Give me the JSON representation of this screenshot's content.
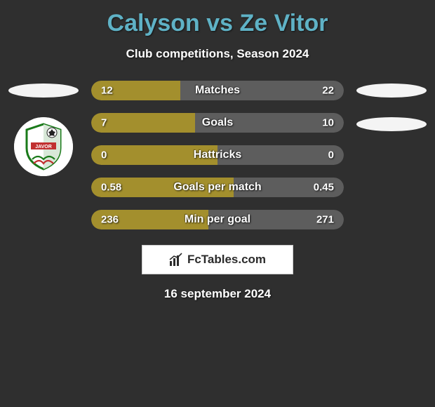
{
  "title": "Calyson vs Ze Vitor",
  "subtitle": "Club competitions, Season 2024",
  "footer_brand": "FcTables.com",
  "footer_date": "16 september 2024",
  "colors": {
    "left_bar": "#a38f2d",
    "right_bar": "#5d5d5d",
    "title": "#5fb2c6",
    "background": "#2f2f2f",
    "badge_bg": "#f4f4f4"
  },
  "stats": [
    {
      "label": "Matches",
      "left_val": "12",
      "right_val": "22",
      "left_pct": 35.3,
      "right_pct": 64.7
    },
    {
      "label": "Goals",
      "left_val": "7",
      "right_val": "10",
      "left_pct": 41.2,
      "right_pct": 58.8
    },
    {
      "label": "Hattricks",
      "left_val": "0",
      "right_val": "0",
      "left_pct": 50.0,
      "right_pct": 50.0
    },
    {
      "label": "Goals per match",
      "left_val": "0.58",
      "right_val": "0.45",
      "left_pct": 56.3,
      "right_pct": 43.7
    },
    {
      "label": "Min per goal",
      "left_val": "236",
      "right_val": "271",
      "left_pct": 46.5,
      "right_pct": 53.5
    }
  ],
  "left_player": {
    "badge_type": "ellipse",
    "club_badge": "javor"
  },
  "right_player": {
    "badge_type": "ellipse",
    "club_badge": "ellipse"
  }
}
